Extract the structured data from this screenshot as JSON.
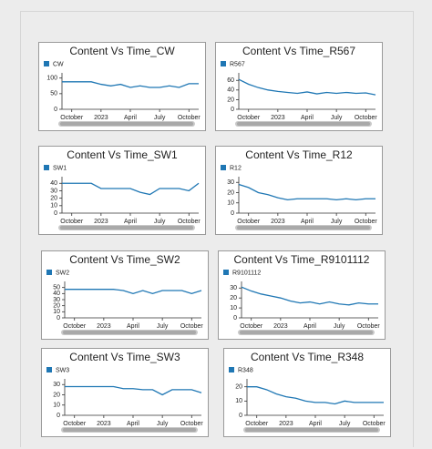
{
  "chart_data": [
    {
      "type": "line",
      "title": "Content Vs Time_CW",
      "x": [
        "2022-09",
        "2022-10",
        "2022-11",
        "2022-12",
        "2023-01",
        "2023-02",
        "2023-03",
        "2023-04",
        "2023-05",
        "2023-06",
        "2023-07",
        "2023-08",
        "2023-09",
        "2023-10",
        "2023-11"
      ],
      "series": [
        {
          "name": "CW",
          "color": "#1f77b4",
          "values": [
            88,
            88,
            88,
            88,
            80,
            75,
            80,
            70,
            75,
            70,
            70,
            75,
            70,
            82,
            82
          ]
        }
      ],
      "xlim": [
        "2022-09",
        "2023-11"
      ],
      "xticks": [
        {
          "value": "2022-10",
          "label": "October"
        },
        {
          "value": "2023-01",
          "label": "2023"
        },
        {
          "value": "2023-04",
          "label": "April"
        },
        {
          "value": "2023-07",
          "label": "July"
        },
        {
          "value": "2023-10",
          "label": "October"
        }
      ],
      "ylim": [
        0,
        105
      ],
      "yticks": [
        0,
        50,
        100
      ]
    },
    {
      "type": "line",
      "title": "Content Vs Time_R567",
      "x": [
        "2022-09",
        "2022-10",
        "2022-11",
        "2022-12",
        "2023-01",
        "2023-02",
        "2023-03",
        "2023-04",
        "2023-05",
        "2023-06",
        "2023-07",
        "2023-08",
        "2023-09",
        "2023-10",
        "2023-11"
      ],
      "series": [
        {
          "name": "R567",
          "color": "#1f77b4",
          "values": [
            62,
            52,
            45,
            40,
            37,
            35,
            33,
            36,
            32,
            35,
            33,
            35,
            33,
            34,
            30
          ]
        }
      ],
      "xlim": [
        "2022-09",
        "2023-11"
      ],
      "xticks": [
        {
          "value": "2022-10",
          "label": "October"
        },
        {
          "value": "2023-01",
          "label": "2023"
        },
        {
          "value": "2023-04",
          "label": "April"
        },
        {
          "value": "2023-07",
          "label": "July"
        },
        {
          "value": "2023-10",
          "label": "October"
        }
      ],
      "ylim": [
        0,
        68
      ],
      "yticks": [
        0,
        20,
        40,
        60
      ]
    },
    {
      "type": "line",
      "title": "Content Vs Time_SW1",
      "x": [
        "2022-09",
        "2022-10",
        "2022-11",
        "2022-12",
        "2023-01",
        "2023-02",
        "2023-03",
        "2023-04",
        "2023-05",
        "2023-06",
        "2023-07",
        "2023-08",
        "2023-09",
        "2023-10",
        "2023-11"
      ],
      "series": [
        {
          "name": "SW1",
          "color": "#1f77b4",
          "values": [
            40,
            40,
            40,
            40,
            33,
            33,
            33,
            33,
            28,
            25,
            33,
            33,
            33,
            30,
            40
          ]
        }
      ],
      "xlim": [
        "2022-09",
        "2023-11"
      ],
      "xticks": [
        {
          "value": "2022-10",
          "label": "October"
        },
        {
          "value": "2023-01",
          "label": "2023"
        },
        {
          "value": "2023-04",
          "label": "April"
        },
        {
          "value": "2023-07",
          "label": "July"
        },
        {
          "value": "2023-10",
          "label": "October"
        }
      ],
      "ylim": [
        0,
        44
      ],
      "yticks": [
        0,
        10,
        20,
        30,
        40
      ]
    },
    {
      "type": "line",
      "title": "Content Vs Time_R12",
      "x": [
        "2022-09",
        "2022-10",
        "2022-11",
        "2022-12",
        "2023-01",
        "2023-02",
        "2023-03",
        "2023-04",
        "2023-05",
        "2023-06",
        "2023-07",
        "2023-08",
        "2023-09",
        "2023-10",
        "2023-11"
      ],
      "series": [
        {
          "name": "R12",
          "color": "#1f77b4",
          "values": [
            28,
            25,
            20,
            18,
            15,
            13,
            14,
            14,
            14,
            14,
            13,
            14,
            13,
            14,
            14
          ]
        }
      ],
      "xlim": [
        "2022-09",
        "2023-11"
      ],
      "xticks": [
        {
          "value": "2022-10",
          "label": "October"
        },
        {
          "value": "2023-01",
          "label": "2023"
        },
        {
          "value": "2023-04",
          "label": "April"
        },
        {
          "value": "2023-07",
          "label": "July"
        },
        {
          "value": "2023-10",
          "label": "October"
        }
      ],
      "ylim": [
        0,
        32
      ],
      "yticks": [
        0,
        10,
        20,
        30
      ]
    },
    {
      "type": "line",
      "title": "Content Vs Time_SW2",
      "x": [
        "2022-09",
        "2022-10",
        "2022-11",
        "2022-12",
        "2023-01",
        "2023-02",
        "2023-03",
        "2023-04",
        "2023-05",
        "2023-06",
        "2023-07",
        "2023-08",
        "2023-09",
        "2023-10",
        "2023-11"
      ],
      "series": [
        {
          "name": "SW2",
          "color": "#1f77b4",
          "values": [
            47,
            47,
            47,
            47,
            47,
            47,
            45,
            40,
            45,
            40,
            45,
            45,
            45,
            40,
            45
          ]
        }
      ],
      "xlim": [
        "2022-09",
        "2023-11"
      ],
      "xticks": [
        {
          "value": "2022-10",
          "label": "October"
        },
        {
          "value": "2023-01",
          "label": "2023"
        },
        {
          "value": "2023-04",
          "label": "April"
        },
        {
          "value": "2023-07",
          "label": "July"
        },
        {
          "value": "2023-10",
          "label": "October"
        }
      ],
      "ylim": [
        0,
        54
      ],
      "yticks": [
        0,
        10,
        20,
        30,
        40,
        50
      ]
    },
    {
      "type": "line",
      "title": "Content Vs Time_R9101112",
      "x": [
        "2022-09",
        "2022-10",
        "2022-11",
        "2022-12",
        "2023-01",
        "2023-02",
        "2023-03",
        "2023-04",
        "2023-05",
        "2023-06",
        "2023-07",
        "2023-08",
        "2023-09",
        "2023-10",
        "2023-11"
      ],
      "series": [
        {
          "name": "R9101112",
          "color": "#1f77b4",
          "values": [
            31,
            27,
            24,
            22,
            20,
            17,
            15,
            16,
            14,
            16,
            14,
            13,
            15,
            14,
            14
          ]
        }
      ],
      "xlim": [
        "2022-09",
        "2023-11"
      ],
      "xticks": [
        {
          "value": "2022-10",
          "label": "October"
        },
        {
          "value": "2023-01",
          "label": "2023"
        },
        {
          "value": "2023-04",
          "label": "April"
        },
        {
          "value": "2023-07",
          "label": "July"
        },
        {
          "value": "2023-10",
          "label": "October"
        }
      ],
      "ylim": [
        0,
        33
      ],
      "yticks": [
        0,
        10,
        20,
        30
      ]
    },
    {
      "type": "line",
      "title": "Content Vs Time_SW3",
      "x": [
        "2022-09",
        "2022-10",
        "2022-11",
        "2022-12",
        "2023-01",
        "2023-02",
        "2023-03",
        "2023-04",
        "2023-05",
        "2023-06",
        "2023-07",
        "2023-08",
        "2023-09",
        "2023-10",
        "2023-11"
      ],
      "series": [
        {
          "name": "SW3",
          "color": "#1f77b4",
          "values": [
            28,
            28,
            28,
            28,
            28,
            28,
            26,
            26,
            25,
            25,
            20,
            25,
            25,
            25,
            22
          ]
        }
      ],
      "xlim": [
        "2022-09",
        "2023-11"
      ],
      "xticks": [
        {
          "value": "2022-10",
          "label": "October"
        },
        {
          "value": "2023-01",
          "label": "2023"
        },
        {
          "value": "2023-04",
          "label": "April"
        },
        {
          "value": "2023-07",
          "label": "July"
        },
        {
          "value": "2023-10",
          "label": "October"
        }
      ],
      "ylim": [
        0,
        32
      ],
      "yticks": [
        0,
        10,
        20,
        30
      ]
    },
    {
      "type": "line",
      "title": "Content Vs Time_R348",
      "x": [
        "2022-09",
        "2022-10",
        "2022-11",
        "2022-12",
        "2023-01",
        "2023-02",
        "2023-03",
        "2023-04",
        "2023-05",
        "2023-06",
        "2023-07",
        "2023-08",
        "2023-09",
        "2023-10",
        "2023-11"
      ],
      "series": [
        {
          "name": "R348",
          "color": "#1f77b4",
          "values": [
            20,
            20,
            18,
            15,
            13,
            12,
            10,
            9,
            9,
            8,
            10,
            9,
            9,
            9,
            9
          ]
        }
      ],
      "xlim": [
        "2022-09",
        "2023-11"
      ],
      "xticks": [
        {
          "value": "2022-10",
          "label": "October"
        },
        {
          "value": "2023-01",
          "label": "2023"
        },
        {
          "value": "2023-04",
          "label": "April"
        },
        {
          "value": "2023-07",
          "label": "July"
        },
        {
          "value": "2023-10",
          "label": "October"
        }
      ],
      "ylim": [
        0,
        23
      ],
      "yticks": [
        0,
        10,
        20
      ]
    }
  ]
}
